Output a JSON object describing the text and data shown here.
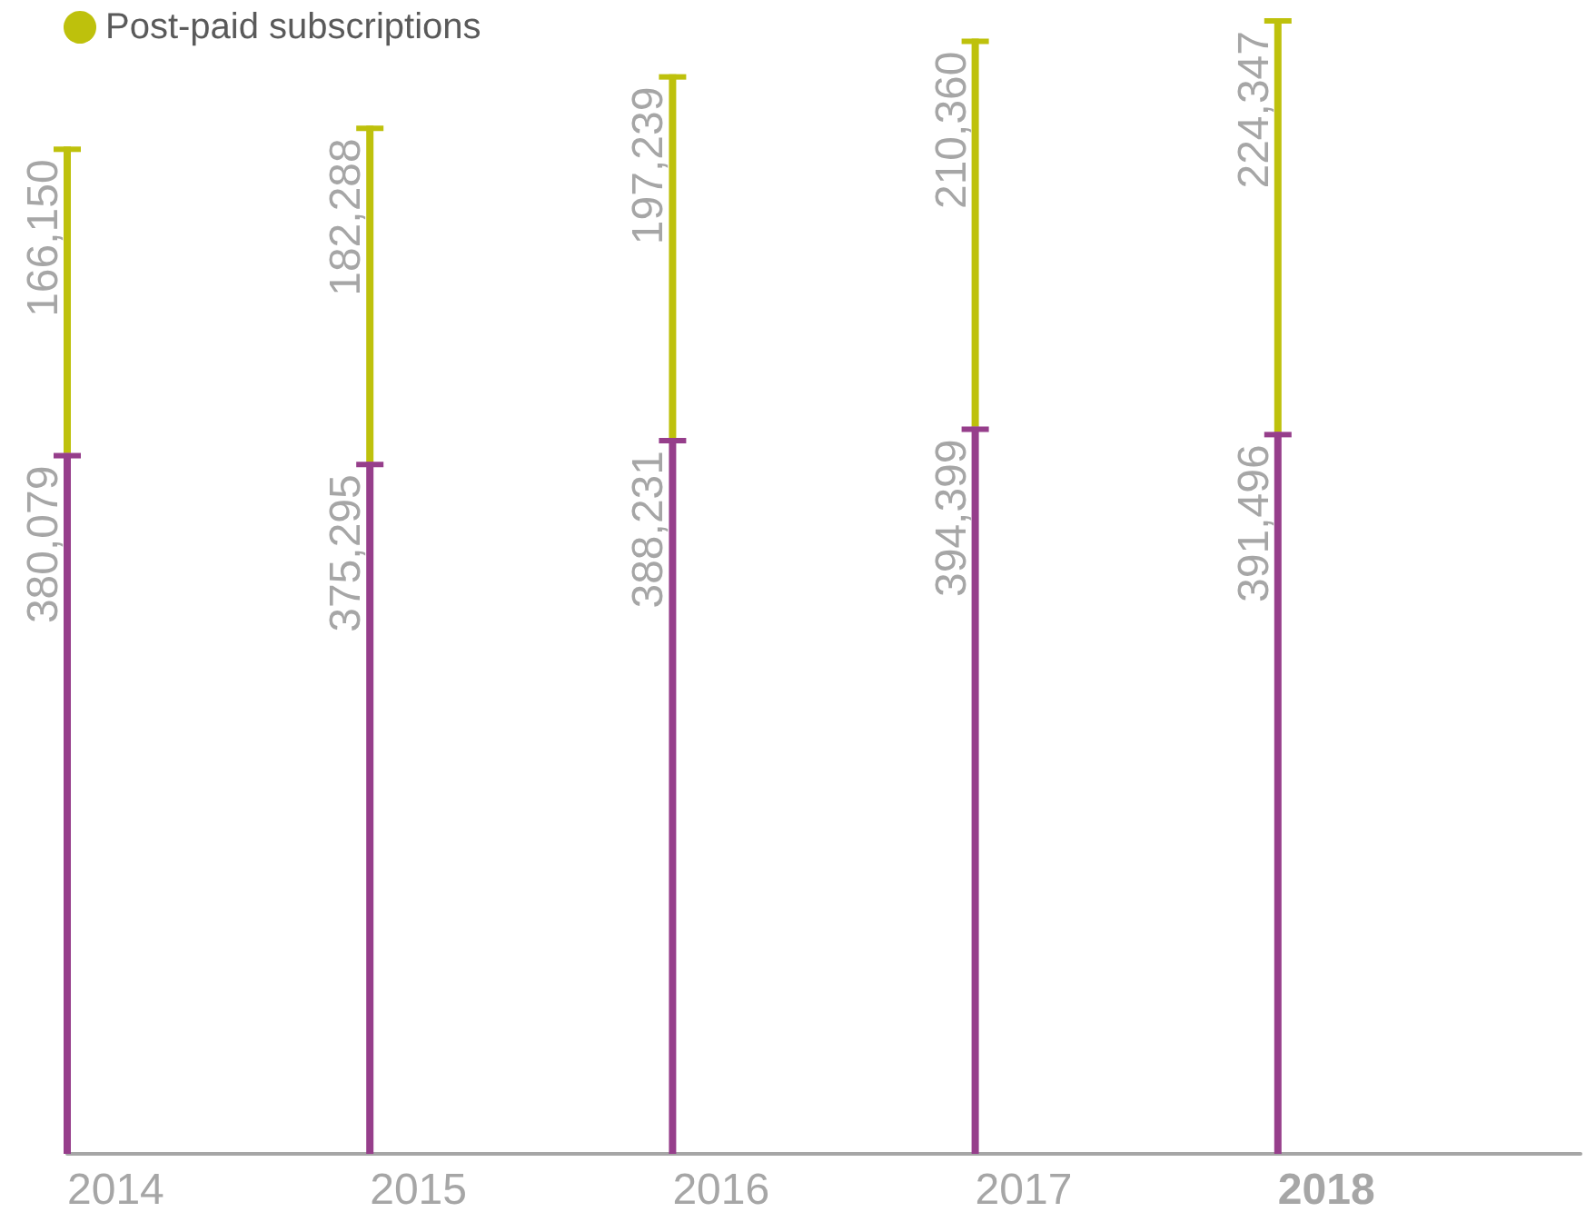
{
  "chart_data": {
    "type": "bar",
    "categories": [
      "2014",
      "2015",
      "2016",
      "2017",
      "2018"
    ],
    "stacked": true,
    "series": [
      {
        "color": "#963e8b",
        "values": [
          380079,
          375295,
          388231,
          394399,
          391496
        ],
        "value_labels": [
          "380,079",
          "375,295",
          "388,231",
          "394,399",
          "391,496"
        ]
      },
      {
        "name": "Post-paid subscriptions",
        "color": "#bec10c",
        "values": [
          166150,
          182288,
          197239,
          210360,
          224347
        ],
        "value_labels": [
          "166,150",
          "182,288",
          "197,239",
          "210,360",
          "224,347"
        ]
      }
    ],
    "legend": "top left",
    "tick_labels": "x"
  }
}
